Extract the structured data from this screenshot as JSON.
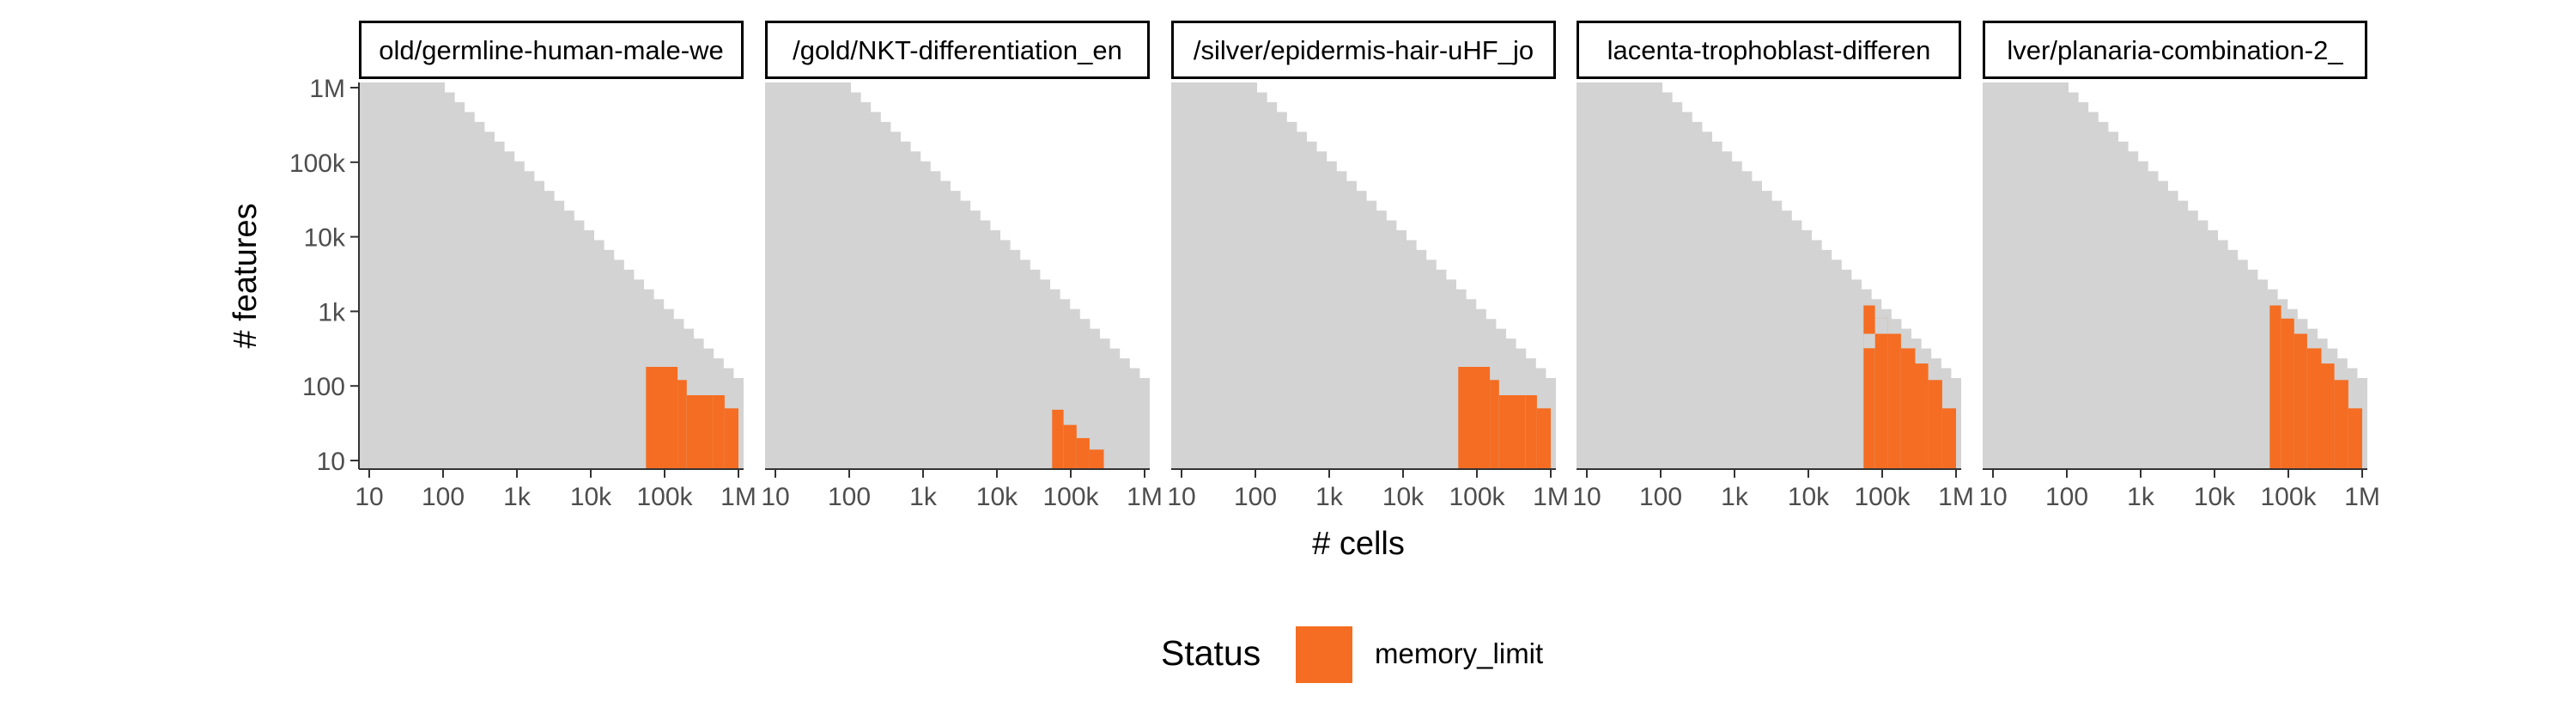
{
  "chart_data": {
    "type": "heatmap",
    "title": "",
    "xlabel": "# cells",
    "ylabel": "# features",
    "x_scale": "log10",
    "y_scale": "log10",
    "xlim": [
      10,
      1000000
    ],
    "ylim": [
      10,
      1000000
    ],
    "x_ticks": [
      {
        "value": 10,
        "label": "10"
      },
      {
        "value": 100,
        "label": "100"
      },
      {
        "value": 1000,
        "label": "1k"
      },
      {
        "value": 10000,
        "label": "10k"
      },
      {
        "value": 100000,
        "label": "100k"
      },
      {
        "value": 1000000,
        "label": "1M"
      }
    ],
    "y_ticks": [
      {
        "value": 10,
        "label": "10"
      },
      {
        "value": 100,
        "label": "100"
      },
      {
        "value": 1000,
        "label": "1k"
      },
      {
        "value": 10000,
        "label": "10k"
      },
      {
        "value": 100000,
        "label": "100k"
      },
      {
        "value": 1000000,
        "label": "1M"
      }
    ],
    "grid": false,
    "legend": {
      "title": "Status",
      "position": "bottom",
      "entries": [
        {
          "label": "memory_limit",
          "color": "#f46d22"
        }
      ]
    },
    "colors": {
      "tested_region": "#d3d3d3",
      "memory_limit": "#f46d22"
    },
    "facets": [
      {
        "label": "old/germline-human-male-we",
        "orange_columns": [
          {
            "x": [
              56000,
              100000
            ],
            "y": [
              10,
              180
            ]
          },
          {
            "x": [
              100000,
              150000
            ],
            "y": [
              10,
              180
            ]
          },
          {
            "x": [
              150000,
              200000
            ],
            "y": [
              10,
              120
            ]
          },
          {
            "x": [
              200000,
              300000
            ],
            "y": [
              10,
              75
            ]
          },
          {
            "x": [
              300000,
              450000
            ],
            "y": [
              10,
              75
            ]
          },
          {
            "x": [
              450000,
              650000
            ],
            "y": [
              10,
              75
            ]
          },
          {
            "x": [
              650000,
              1000000
            ],
            "y": [
              10,
              50
            ]
          }
        ]
      },
      {
        "label": "/gold/NKT-differentiation_en",
        "orange_columns": [
          {
            "x": [
              56000,
              80000
            ],
            "y": [
              10,
              48
            ]
          },
          {
            "x": [
              80000,
              120000
            ],
            "y": [
              10,
              30
            ]
          },
          {
            "x": [
              120000,
              180000
            ],
            "y": [
              10,
              20
            ]
          },
          {
            "x": [
              180000,
              280000
            ],
            "y": [
              10,
              14
            ]
          }
        ]
      },
      {
        "label": "/silver/epidermis-hair-uHF_jo",
        "orange_columns": [
          {
            "x": [
              56000,
              100000
            ],
            "y": [
              10,
              180
            ]
          },
          {
            "x": [
              100000,
              150000
            ],
            "y": [
              10,
              180
            ]
          },
          {
            "x": [
              150000,
              200000
            ],
            "y": [
              10,
              120
            ]
          },
          {
            "x": [
              200000,
              300000
            ],
            "y": [
              10,
              75
            ]
          },
          {
            "x": [
              300000,
              450000
            ],
            "y": [
              10,
              75
            ]
          },
          {
            "x": [
              450000,
              650000
            ],
            "y": [
              10,
              75
            ]
          },
          {
            "x": [
              650000,
              1000000
            ],
            "y": [
              10,
              50
            ]
          }
        ]
      },
      {
        "label": "lacenta-trophoblast-differen",
        "orange_columns": [
          {
            "x": [
              56000,
              80000
            ],
            "y": [
              10,
              1200
            ]
          },
          {
            "x": [
              80000,
              120000
            ],
            "y": [
              10,
              800
            ]
          },
          {
            "x": [
              120000,
              180000
            ],
            "y": [
              10,
              500
            ]
          },
          {
            "x": [
              180000,
              280000
            ],
            "y": [
              10,
              320
            ]
          },
          {
            "x": [
              280000,
              420000
            ],
            "y": [
              10,
              200
            ]
          },
          {
            "x": [
              420000,
              650000
            ],
            "y": [
              10,
              120
            ]
          },
          {
            "x": [
              650000,
              1000000
            ],
            "y": [
              10,
              50
            ]
          }
        ],
        "gray_notches": [
          {
            "x": [
              56000,
              80000
            ],
            "y": [
              320,
              500
            ]
          },
          {
            "x": [
              80000,
              120000
            ],
            "y": [
              500,
              800
            ]
          }
        ]
      },
      {
        "label": "lver/planaria-combination-2_",
        "orange_columns": [
          {
            "x": [
              56000,
              80000
            ],
            "y": [
              10,
              1200
            ]
          },
          {
            "x": [
              80000,
              120000
            ],
            "y": [
              10,
              800
            ]
          },
          {
            "x": [
              120000,
              180000
            ],
            "y": [
              10,
              500
            ]
          },
          {
            "x": [
              180000,
              280000
            ],
            "y": [
              10,
              320
            ]
          },
          {
            "x": [
              280000,
              420000
            ],
            "y": [
              10,
              200
            ]
          },
          {
            "x": [
              420000,
              650000
            ],
            "y": [
              10,
              120
            ]
          },
          {
            "x": [
              650000,
              1000000
            ],
            "y": [
              10,
              50
            ]
          }
        ]
      }
    ]
  }
}
